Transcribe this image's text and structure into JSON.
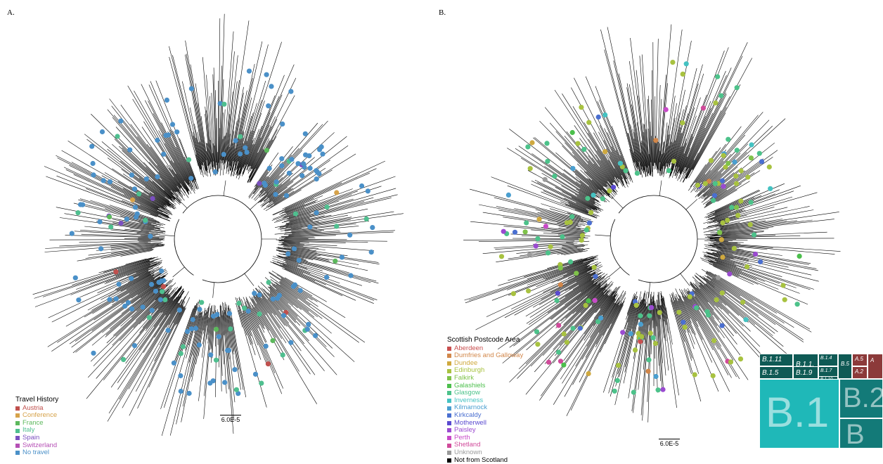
{
  "panels": {
    "a_label": "A.",
    "b_label": "B."
  },
  "panel_a": {
    "legend": {
      "title": "Travel History",
      "items": [
        {
          "label": "Austria",
          "color": "#c0504d"
        },
        {
          "label": "Conference",
          "color": "#d6a24a"
        },
        {
          "label": "France",
          "color": "#5cb85c"
        },
        {
          "label": "Italy",
          "color": "#4fbf8f"
        },
        {
          "label": "Spain",
          "color": "#7a4fc0"
        },
        {
          "label": "Switzerland",
          "color": "#b54fb5"
        },
        {
          "label": "No travel",
          "color": "#4a90c8"
        }
      ]
    },
    "scale_label": "6.0E-5"
  },
  "panel_b": {
    "legend": {
      "title": "Scottish Postcode Area",
      "items": [
        {
          "label": "Aberdeen",
          "color": "#c94f4f"
        },
        {
          "label": "Dumfries and Galloway",
          "color": "#d2874a"
        },
        {
          "label": "Dundee",
          "color": "#cfa93f"
        },
        {
          "label": "Edinburgh",
          "color": "#a8c240"
        },
        {
          "label": "Falkirk",
          "color": "#7fc24a"
        },
        {
          "label": "Galashiels",
          "color": "#4cbf4c"
        },
        {
          "label": "Glasgow",
          "color": "#4cc28a"
        },
        {
          "label": "Inverness",
          "color": "#45c2c2"
        },
        {
          "label": "Kilmarnock",
          "color": "#4a9fd0"
        },
        {
          "label": "Kirkcaldy",
          "color": "#4a6fd0"
        },
        {
          "label": "Motherwell",
          "color": "#5a4ad0"
        },
        {
          "label": "Paisley",
          "color": "#9a4ad0"
        },
        {
          "label": "Perth",
          "color": "#c84ac8"
        },
        {
          "label": "Shetland",
          "color": "#d04a9a"
        },
        {
          "label": "Unknown",
          "color": "#9a9a9a"
        },
        {
          "label": "Not from Scotland",
          "color": "#000000"
        }
      ]
    },
    "scale_label": "6.0E-5",
    "lineage_treemap": {
      "blocks": [
        {
          "label": "B.1.11",
          "color": "#0f5a55"
        },
        {
          "label": "B.1.1.",
          "color": "#0f5a55"
        },
        {
          "label": "B.1.4",
          "color": "#0f5a55"
        },
        {
          "label": "B.1.7",
          "color": "#0f5a55"
        },
        {
          "label": "B.1.10",
          "color": "#0f5a55"
        },
        {
          "label": "B.1.5",
          "color": "#0f5a55"
        },
        {
          "label": "B.1.9",
          "color": "#0f5a55"
        },
        {
          "label": "B.5",
          "color": "#0f5a55"
        },
        {
          "label": "A.5",
          "color": "#8c3a3a"
        },
        {
          "label": "A.2",
          "color": "#8c3a3a"
        },
        {
          "label": "A",
          "color": "#8c3a3a"
        },
        {
          "label": "B.1",
          "color": "#1fb8b8"
        },
        {
          "label": "B.2",
          "color": "#137a78"
        },
        {
          "label": "B",
          "color": "#137a78"
        }
      ]
    }
  },
  "colors": {
    "branch": "#000000",
    "text": "#000000"
  }
}
